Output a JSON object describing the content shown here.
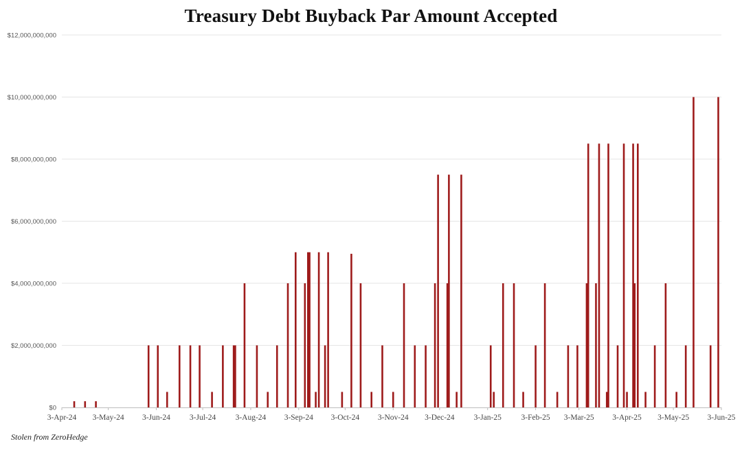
{
  "credit": "Stolen from ZeroHedge",
  "colors": {
    "bar": "#9e1b1b",
    "grid": "#e4e4e4",
    "axis": "#bdbdbd"
  },
  "chart_data": {
    "type": "bar",
    "title": "Treasury Debt Buyback Par Amount Accepted",
    "xlabel": "",
    "ylabel": "",
    "x_range": [
      "2024-04-03",
      "2025-06-03"
    ],
    "ylim": [
      0,
      12000000000
    ],
    "ytick_values": [
      0,
      2000000000,
      4000000000,
      6000000000,
      8000000000,
      10000000000,
      12000000000
    ],
    "ytick_labels": [
      "$0",
      "$2,000,000,000",
      "$4,000,000,000",
      "$6,000,000,000",
      "$8,000,000,000",
      "$10,000,000,000",
      "$12,000,000,000"
    ],
    "xtick_dates": [
      "2024-04-03",
      "2024-05-03",
      "2024-06-03",
      "2024-07-03",
      "2024-08-03",
      "2024-09-03",
      "2024-10-03",
      "2024-11-03",
      "2024-12-03",
      "2025-01-03",
      "2025-02-03",
      "2025-03-03",
      "2025-04-03",
      "2025-05-03",
      "2025-06-03"
    ],
    "xtick_labels": [
      "3-Apr-24",
      "3-May-24",
      "3-Jun-24",
      "3-Jul-24",
      "3-Aug-24",
      "3-Sep-24",
      "3-Oct-24",
      "3-Nov-24",
      "3-Dec-24",
      "3-Jan-25",
      "3-Feb-25",
      "3-Mar-25",
      "3-Apr-25",
      "3-May-25",
      "3-Jun-25"
    ],
    "grid": true,
    "series": [
      {
        "dates": [
          "2024-04-11",
          "2024-04-18",
          "2024-04-25",
          "2024-05-29",
          "2024-06-04",
          "2024-06-10",
          "2024-06-18",
          "2024-06-25",
          "2024-07-01",
          "2024-07-09",
          "2024-07-16",
          "2024-07-23",
          "2024-07-24",
          "2024-07-30",
          "2024-08-07",
          "2024-08-14",
          "2024-08-20",
          "2024-08-27",
          "2024-09-01",
          "2024-09-07",
          "2024-09-09",
          "2024-09-10",
          "2024-09-14",
          "2024-09-16",
          "2024-09-20",
          "2024-09-22",
          "2024-10-01",
          "2024-10-07",
          "2024-10-13",
          "2024-10-20",
          "2024-10-27",
          "2024-11-03",
          "2024-11-10",
          "2024-11-17",
          "2024-11-24",
          "2024-11-30",
          "2024-12-02",
          "2024-12-08",
          "2024-12-09",
          "2024-12-14",
          "2024-12-17",
          "2025-01-05",
          "2025-01-07",
          "2025-01-13",
          "2025-01-20",
          "2025-01-26",
          "2025-02-03",
          "2025-02-09",
          "2025-02-17",
          "2025-02-24",
          "2025-03-02",
          "2025-03-08",
          "2025-03-09",
          "2025-03-14",
          "2025-03-16",
          "2025-03-21",
          "2025-03-22",
          "2025-03-28",
          "2025-04-01",
          "2025-04-03",
          "2025-04-07",
          "2025-04-08",
          "2025-04-10",
          "2025-04-15",
          "2025-04-21",
          "2025-04-28",
          "2025-05-05",
          "2025-05-11",
          "2025-05-16",
          "2025-05-27",
          "2025-06-01"
        ],
        "values": [
          200000000,
          200000000,
          200000000,
          2000000000,
          2000000000,
          500000000,
          2000000000,
          2000000000,
          2000000000,
          500000000,
          2000000000,
          2000000000,
          2000000000,
          4000000000,
          2000000000,
          500000000,
          2000000000,
          4000000000,
          5000000000,
          4000000000,
          5000000000,
          5000000000,
          500000000,
          5000000000,
          2000000000,
          5000000000,
          500000000,
          4950000000,
          4000000000,
          500000000,
          2000000000,
          500000000,
          4000000000,
          2000000000,
          2000000000,
          4000000000,
          7500000000,
          4000000000,
          7500000000,
          500000000,
          7500000000,
          2000000000,
          500000000,
          4000000000,
          4000000000,
          500000000,
          2000000000,
          4000000000,
          500000000,
          2000000000,
          2000000000,
          4000000000,
          8500000000,
          4000000000,
          8500000000,
          500000000,
          8500000000,
          2000000000,
          8500000000,
          500000000,
          8500000000,
          4000000000,
          8500000000,
          500000000,
          2000000000,
          4000000000,
          500000000,
          2000000000,
          10000000000,
          2000000000,
          10000000000
        ]
      }
    ]
  }
}
